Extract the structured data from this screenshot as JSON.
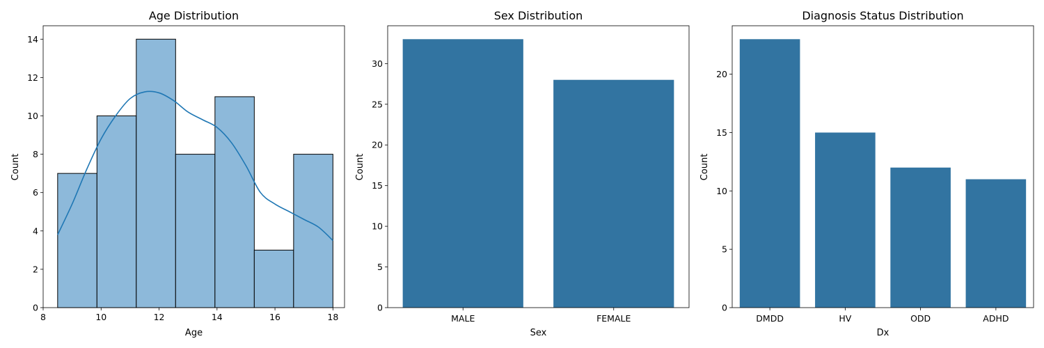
{
  "chart_data": [
    {
      "type": "bar",
      "title": "Age Distribution",
      "xlabel": "Age",
      "ylabel": "Count",
      "xlim": [
        8,
        18.4
      ],
      "ylim": [
        0,
        14.7
      ],
      "xticks": [
        "8",
        "10",
        "12",
        "14",
        "16",
        "18"
      ],
      "yticks": [
        "0",
        "2",
        "4",
        "6",
        "8",
        "10",
        "12",
        "14"
      ],
      "bins": [
        {
          "start": 8.5,
          "end": 9.857,
          "count": 7
        },
        {
          "start": 9.857,
          "end": 11.214,
          "count": 10
        },
        {
          "start": 11.214,
          "end": 12.571,
          "count": 14
        },
        {
          "start": 12.571,
          "end": 13.929,
          "count": 8
        },
        {
          "start": 13.929,
          "end": 15.286,
          "count": 11
        },
        {
          "start": 15.286,
          "end": 16.643,
          "count": 3
        },
        {
          "start": 16.643,
          "end": 18.0,
          "count": 8
        }
      ],
      "kde": {
        "x": [
          8.5,
          9.0,
          9.5,
          10.0,
          10.5,
          11.0,
          11.5,
          12.0,
          12.5,
          13.0,
          13.5,
          14.0,
          14.5,
          15.0,
          15.5,
          16.0,
          16.5,
          17.0,
          17.5,
          18.0
        ],
        "y": [
          3.8,
          5.4,
          7.2,
          8.8,
          10.0,
          10.9,
          11.25,
          11.2,
          10.8,
          10.2,
          9.8,
          9.4,
          8.6,
          7.4,
          6.0,
          5.4,
          5.0,
          4.6,
          4.2,
          3.5
        ]
      },
      "bar_color": "#8db9da",
      "line_color": "#1f77b4"
    },
    {
      "type": "bar",
      "title": "Sex Distribution",
      "xlabel": "Sex",
      "ylabel": "Count",
      "categories": [
        "MALE",
        "FEMALE"
      ],
      "values": [
        33,
        28
      ],
      "ylim": [
        0,
        34.65
      ],
      "yticks": [
        "0",
        "5",
        "10",
        "15",
        "20",
        "25",
        "30"
      ],
      "bar_color": "#3274a1"
    },
    {
      "type": "bar",
      "title": "Diagnosis Status Distribution",
      "xlabel": "Dx",
      "ylabel": "Count",
      "categories": [
        "DMDD",
        "HV",
        "ODD",
        "ADHD"
      ],
      "values": [
        23,
        15,
        12,
        11
      ],
      "ylim": [
        0,
        24.15
      ],
      "yticks": [
        "0",
        "5",
        "10",
        "15",
        "20"
      ],
      "bar_color": "#3274a1"
    }
  ]
}
